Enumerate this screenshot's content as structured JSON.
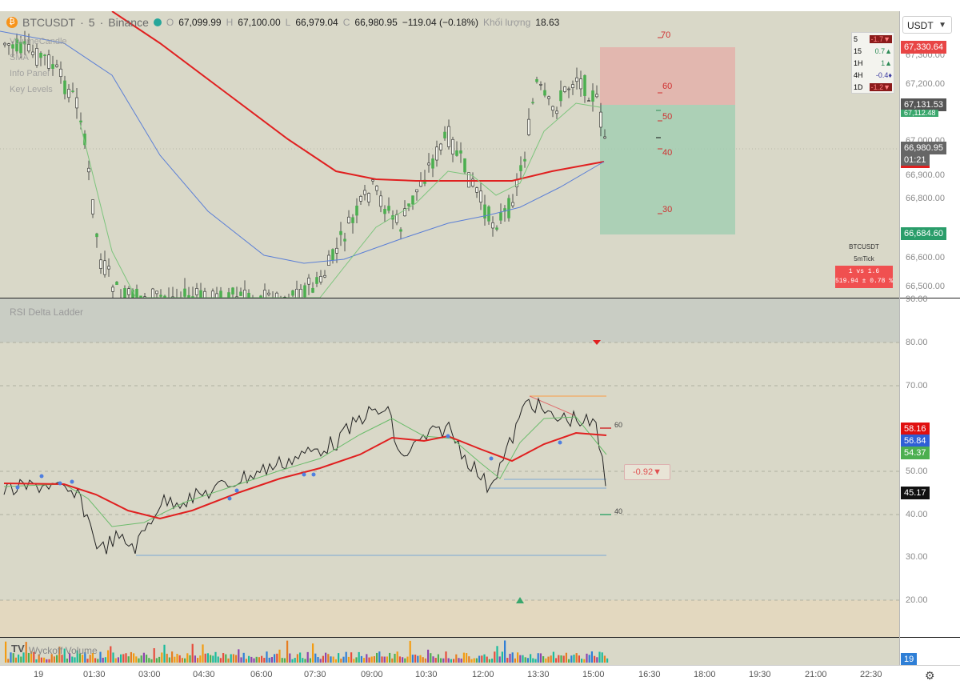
{
  "header": {
    "symbol": "BTCUSDT",
    "interval": "5",
    "exchange": "Binance",
    "open_label": "O",
    "open": "67,099.99",
    "high_label": "H",
    "high": "67,100.00",
    "low_label": "L",
    "low": "66,979.04",
    "close_label": "C",
    "close": "66,980.95",
    "change": "−119.04 (−0.18%)",
    "volume_label": "Khối lượng",
    "volume": "18.63"
  },
  "indicators": [
    "VolumeCandle",
    "SMA",
    "Info Panel",
    "Key Levels"
  ],
  "currency_button": "USDT",
  "mtf_table": [
    {
      "tf": "5",
      "val": "-1.7▼",
      "state": "neg"
    },
    {
      "tf": "15",
      "val": "0.7▲",
      "state": "pos"
    },
    {
      "tf": "1H",
      "val": "1▲",
      "state": "pos"
    },
    {
      "tf": "4H",
      "val": "-0.4♦",
      "state": "neu"
    },
    {
      "tf": "1D",
      "val": "-1.2▼",
      "state": "neg"
    }
  ],
  "tick_info": {
    "symbol": "BTCUSDT",
    "timeframe": "5mTick",
    "ratio": "1 vs 1.6",
    "stat": "519.94 ± 0.78 %"
  },
  "price_axis": [
    "67,300.00",
    "67,200.00",
    "67,000.00",
    "66,900.00",
    "66,800.00",
    "66,600.00",
    "66,500.00"
  ],
  "price_tags": {
    "target": "67,330.64",
    "entry": "67,131.53",
    "entry_sub": "67,112.48",
    "last": "66,980.95",
    "countdown": "01:21",
    "stop": "66,684.60"
  },
  "rsi_levels": [
    "70",
    "60",
    "50",
    "40",
    "30"
  ],
  "rsi_title": "RSI Delta Ladder",
  "rsi_axis": [
    "90.00",
    "80.00",
    "70.00",
    "60.00",
    "50.00",
    "40.00",
    "30.00",
    "20.00"
  ],
  "rsi_tags": {
    "a": "58.16",
    "b": "56.84",
    "c": "54.37",
    "d": "45.17"
  },
  "rsi_marks": {
    "upper": "60",
    "lower": "40"
  },
  "rsi_delta": "-0.92▼",
  "volume_title": "Wyckoff Volume",
  "volume_tag": "19",
  "time_axis": [
    "19",
    "01:30",
    "03:00",
    "04:30",
    "06:00",
    "07:30",
    "09:00",
    "10:30",
    "12:00",
    "13:30",
    "15:00",
    "16:30",
    "18:00",
    "19:30",
    "21:00",
    "22:30"
  ],
  "colors": {
    "bull": "#4caf50",
    "bear": "#222222",
    "ma_red": "#e02020",
    "ma_blue": "#5b7fd6",
    "ma_green": "#7cc47c",
    "target_zone": "#e8a7a2",
    "stop_zone": "#8cc7a6"
  }
}
